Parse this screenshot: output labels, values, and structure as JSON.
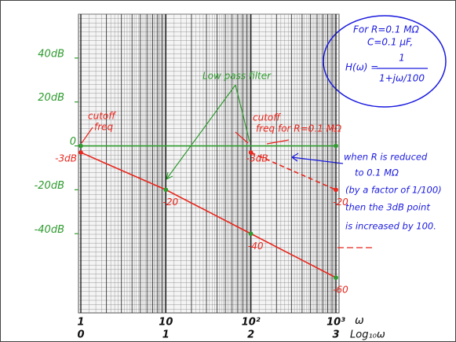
{
  "chart_data": {
    "type": "line",
    "log_x": true,
    "xlim": [
      1,
      1000
    ],
    "ylim": [
      -75,
      60
    ],
    "xticks": [
      1,
      10,
      {
        "value": 100,
        "label": "10²"
      },
      {
        "value": 1000,
        "label": "10³"
      }
    ],
    "log_labels": [
      "0",
      "1",
      "2",
      "3"
    ],
    "x_label": "ω",
    "x_label2": "Log₁₀ω",
    "yticks": [
      {
        "value": 40,
        "label": "40dB"
      },
      {
        "value": 20,
        "label": "20dB"
      },
      0,
      {
        "value": -20,
        "label": "-20dB"
      },
      {
        "value": -40,
        "label": "-40dB"
      }
    ],
    "grid": true,
    "series": [
      {
        "color": "#e8261c",
        "x": [
          1,
          10,
          100,
          1000
        ],
        "values": [
          -3,
          -20,
          -40,
          -60
        ],
        "value_labels": [
          "-3dB",
          "-20",
          "-40",
          "-60"
        ]
      },
      {
        "color": "#2e9a2e",
        "x": [
          1,
          1000
        ],
        "values": [
          0,
          0
        ]
      },
      {
        "color": "#e8261c",
        "dashed": true,
        "x": [
          100,
          1000
        ],
        "values": [
          -3,
          -20
        ],
        "value_labels": [
          "-3dB",
          "-20"
        ]
      }
    ],
    "annotations": [
      "cutoff",
      "freq",
      "cutoff",
      "freq for R=0.1 MΩ",
      "Low pass filter"
    ],
    "callout": [
      "For R=0.1 MΩ",
      "C=0.1 μF,",
      "H(ω) =",
      "1",
      "1+jω/100"
    ],
    "note": [
      "when R is reduced",
      "to 0.1 MΩ",
      "(by a factor of 1/100)",
      "then the 3dB point",
      "is increased by 100."
    ]
  }
}
